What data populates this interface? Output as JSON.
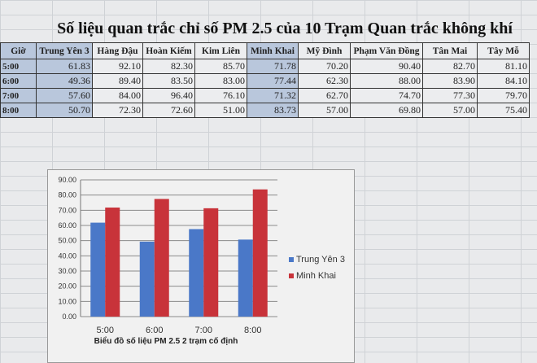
{
  "title": "Số liệu quan trắc chỉ số PM 2.5 của 10 Trạm Quan trắc không khí",
  "table": {
    "headers": [
      "Giờ",
      "Trung Yên 3",
      "Hàng Đậu",
      "Hoàn Kiếm",
      "Kim Liên",
      "Minh Khai",
      "Mỹ Đình",
      "Phạm Văn Đồng",
      "Tân Mai",
      "Tây Mỗ"
    ],
    "rows": [
      [
        "5:00",
        "61.83",
        "92.10",
        "82.30",
        "85.70",
        "71.78",
        "70.20",
        "90.40",
        "82.70",
        "81.10"
      ],
      [
        "6:00",
        "49.36",
        "89.40",
        "83.50",
        "83.00",
        "77.44",
        "62.30",
        "88.00",
        "83.90",
        "84.10"
      ],
      [
        "7:00",
        "57.60",
        "84.00",
        "96.40",
        "76.10",
        "71.32",
        "62.70",
        "74.70",
        "77.30",
        "79.70"
      ],
      [
        "8:00",
        "50.70",
        "72.30",
        "72.60",
        "51.00",
        "83.73",
        "57.00",
        "69.80",
        "57.00",
        "75.40"
      ]
    ]
  },
  "chart_data": {
    "type": "bar",
    "categories": [
      "5:00",
      "6:00",
      "7:00",
      "8:00"
    ],
    "series": [
      {
        "name": "Trung Yên 3",
        "values": [
          61.83,
          49.36,
          57.6,
          50.7
        ],
        "color": "#4a78c8"
      },
      {
        "name": "Minh Khai",
        "values": [
          71.78,
          77.44,
          71.32,
          83.73
        ],
        "color": "#c8333a"
      }
    ],
    "xlabel": "Biểu đồ số liệu PM 2.5 2 trạm cố định",
    "ylim": [
      0,
      90
    ],
    "yticks": [
      "0.00",
      "10.00",
      "20.00",
      "30.00",
      "40.00",
      "50.00",
      "60.00",
      "70.00",
      "80.00",
      "90.00"
    ],
    "grid": true,
    "legend": "right"
  }
}
